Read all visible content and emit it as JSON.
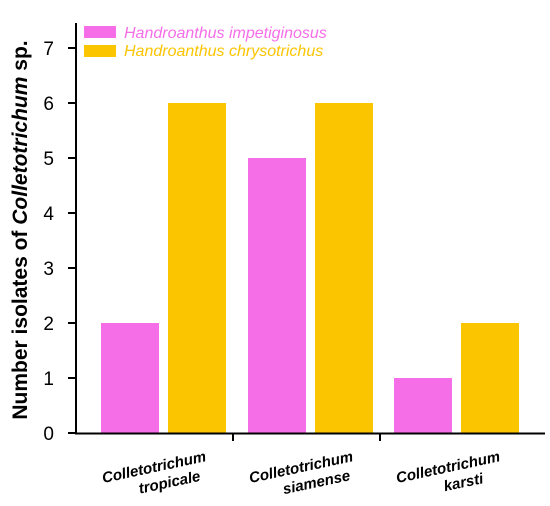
{
  "chart_data": {
    "type": "bar",
    "categories": [
      [
        "Colletotrichum",
        "tropicale"
      ],
      [
        "Colletotrichum",
        "siamense"
      ],
      [
        "Colletotrichum",
        "karsti"
      ]
    ],
    "series": [
      {
        "name": "Handroanthus impetiginosus",
        "color": "#f56ee8",
        "values": [
          2,
          5,
          1
        ]
      },
      {
        "name": "Handroanthus chrysotrichus",
        "color": "#fbc500",
        "values": [
          6,
          6,
          2
        ]
      }
    ],
    "ylabel": {
      "pre": "Number isolates of ",
      "italic": "Colletotrichum",
      "post": " sp."
    },
    "ylim": [
      0,
      7
    ],
    "yticks": [
      "0",
      "1",
      "2",
      "3",
      "4",
      "5",
      "6",
      "7"
    ],
    "grid": false,
    "legend_position": "top-left"
  }
}
